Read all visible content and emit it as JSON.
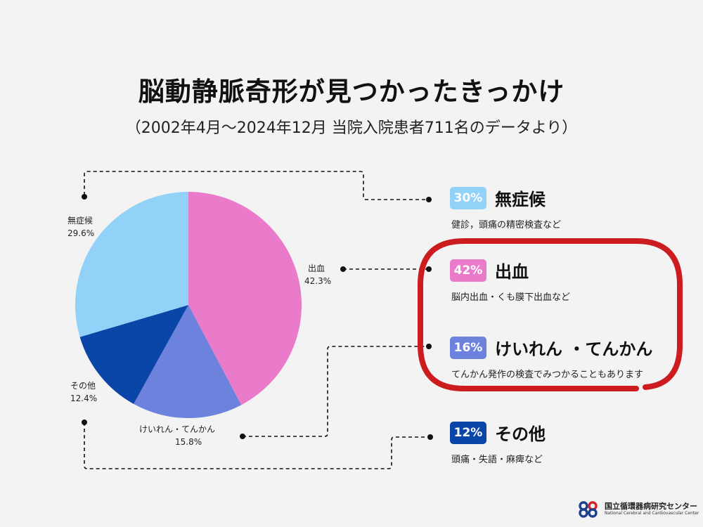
{
  "title": "脳動静脈奇形が見つかったきっかけ",
  "subtitle": "（2002年4月〜2024年12月 当院入院患者711名のデータより）",
  "chart_data": {
    "type": "pie",
    "start_angle": "12 o'clock",
    "direction": "clockwise",
    "slices": [
      {
        "name": "出血",
        "value": 42.3,
        "label": "42.3%",
        "color": "#ea7bca"
      },
      {
        "name": "けいれん・てんかん",
        "value": 15.8,
        "label": "15.8%",
        "color": "#6d82dc"
      },
      {
        "name": "その他",
        "value": 12.4,
        "label": "12.4%",
        "color": "#0a46a8"
      },
      {
        "name": "無症候",
        "value": 29.6,
        "label": "29.6%",
        "color": "#92d2f8"
      }
    ]
  },
  "categories": [
    {
      "badge": "30%",
      "name": "無症候",
      "desc": "健診，頭痛の精密検査など",
      "color": "#92d2f8"
    },
    {
      "badge": "42%",
      "name": "出血",
      "desc": "脳内出血・くも膜下出血など",
      "color": "#ea7bca"
    },
    {
      "badge": "16%",
      "name": "けいれん ・てんかん",
      "desc": "てんかん発作の検査でみつかることもあります",
      "color": "#6d82dc"
    },
    {
      "badge": "12%",
      "name": "その他",
      "desc": "頭痛・失語・麻痺など",
      "color": "#0a46a8"
    }
  ],
  "highlight_color": "#cc1c20",
  "logo": {
    "jp": "国立循環器病研究センター",
    "en": "National Cerebral and Cardiovascular Center",
    "colors": [
      "#d2232a",
      "#1d3f8f"
    ]
  }
}
